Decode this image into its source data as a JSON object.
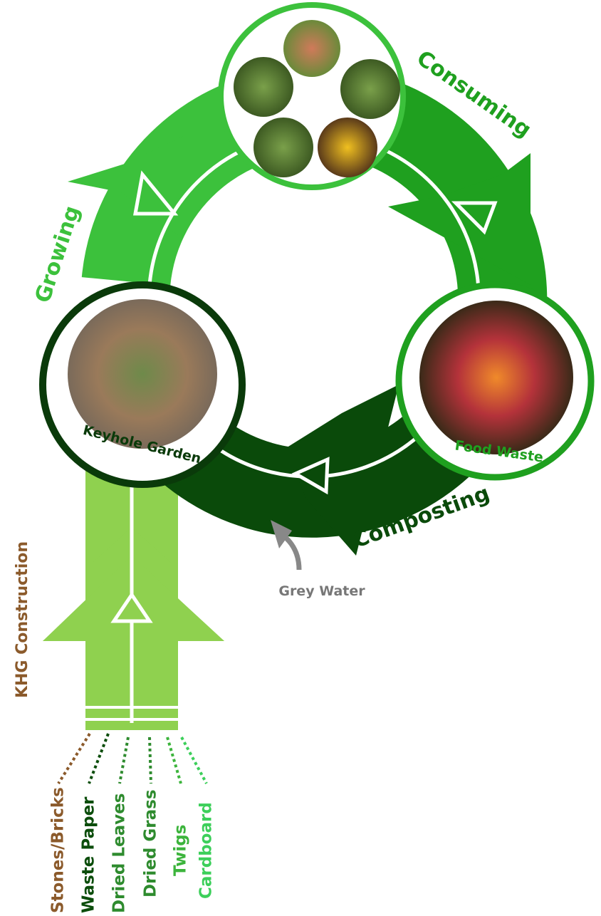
{
  "cycle": {
    "stages": [
      "Growing",
      "Consuming",
      "Composting"
    ],
    "nodes": [
      "Keyhole Garden",
      "Food Waste"
    ],
    "grey_water": "Grey Water"
  },
  "construction": {
    "title": "KHG Construction",
    "items": [
      "Stones/Bricks",
      "Waste Paper",
      "Dried Leaves",
      "Dried Grass",
      "Twigs",
      "Cardboard"
    ]
  }
}
